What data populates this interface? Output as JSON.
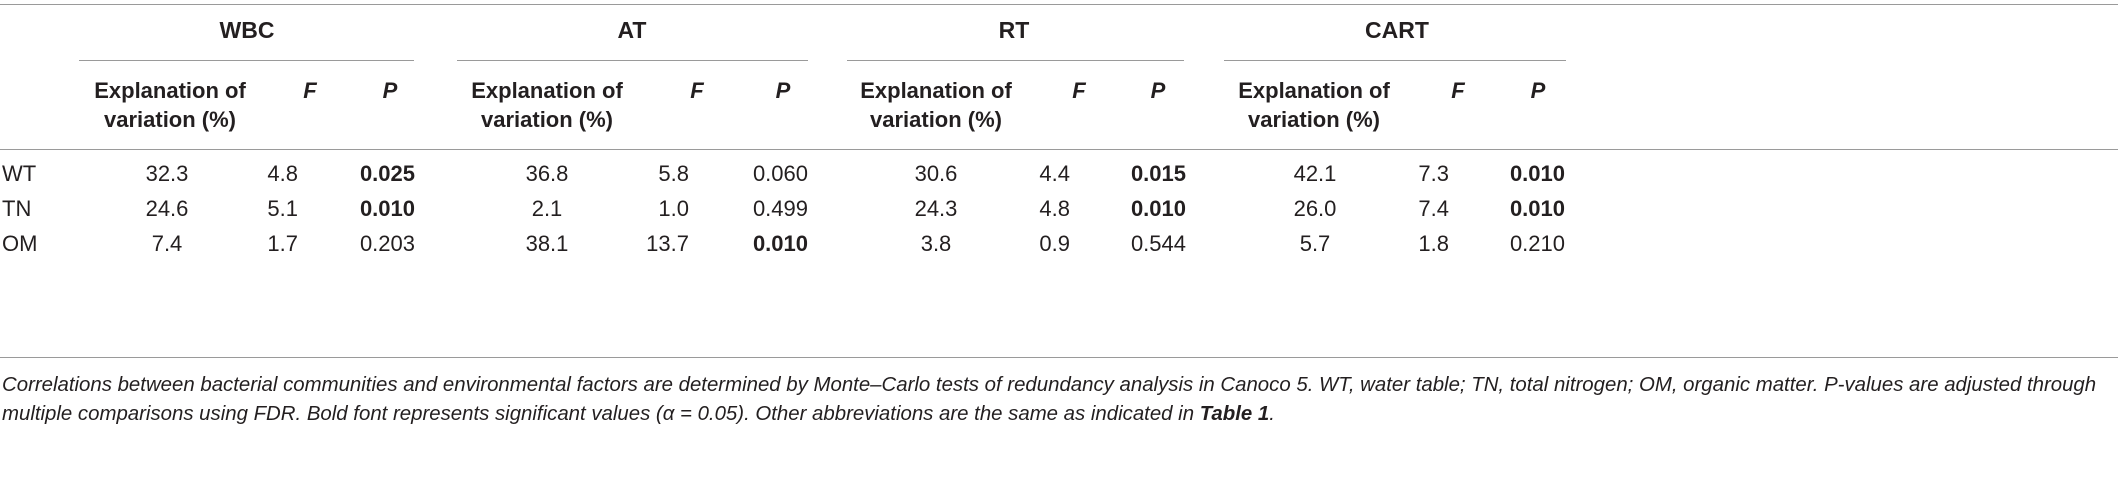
{
  "groups": [
    "WBC",
    "AT",
    "RT",
    "CART"
  ],
  "subheaders": {
    "explanation": "Explanation of variation (%)",
    "f": "F",
    "p": "P"
  },
  "rows": [
    {
      "label": "WT",
      "values": [
        {
          "e": "32.3",
          "f": "4.8",
          "p": "0.025",
          "sig": true
        },
        {
          "e": "36.8",
          "f": "5.8",
          "p": "0.060",
          "sig": false
        },
        {
          "e": "30.6",
          "f": "4.4",
          "p": "0.015",
          "sig": true
        },
        {
          "e": "42.1",
          "f": "7.3",
          "p": "0.010",
          "sig": true
        }
      ]
    },
    {
      "label": "TN",
      "values": [
        {
          "e": "24.6",
          "f": "5.1",
          "p": "0.010",
          "sig": true
        },
        {
          "e": "2.1",
          "f": "1.0",
          "p": "0.499",
          "sig": false
        },
        {
          "e": "24.3",
          "f": "4.8",
          "p": "0.010",
          "sig": true
        },
        {
          "e": "26.0",
          "f": "7.4",
          "p": "0.010",
          "sig": true
        }
      ]
    },
    {
      "label": "OM",
      "values": [
        {
          "e": "7.4",
          "f": "1.7",
          "p": "0.203",
          "sig": false
        },
        {
          "e": "38.1",
          "f": "13.7",
          "p": "0.010",
          "sig": true
        },
        {
          "e": "3.8",
          "f": "0.9",
          "p": "0.544",
          "sig": false
        },
        {
          "e": "5.7",
          "f": "1.8",
          "p": "0.210",
          "sig": false
        }
      ]
    }
  ],
  "footnote": {
    "text": "Correlations between bacterial communities and environmental factors are determined by Monte–Carlo tests of redundancy analysis in Canoco 5. WT, water table; TN, total nitrogen; OM, organic matter. P-values are adjusted through multiple comparisons using FDR. Bold font represents significant values (α = 0.05). Other abbreviations are the same as indicated in ",
    "ref": "Table 1",
    "end": "."
  }
}
